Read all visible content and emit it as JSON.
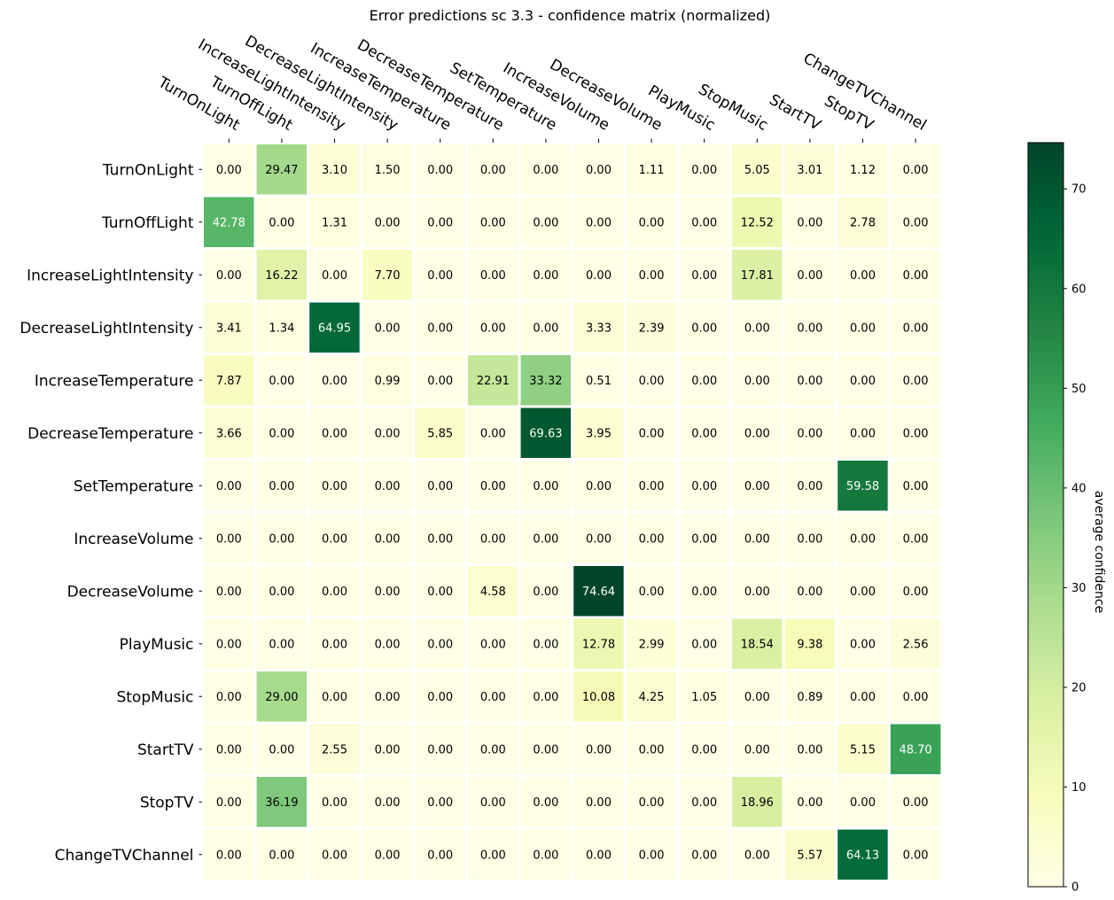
{
  "chart_data": {
    "type": "heatmap",
    "title": "Error predictions sc 3.3 - confidence matrix (normalized)",
    "xlabel": "",
    "ylabel": "",
    "x_categories": [
      "TurnOnLight",
      "TurnOffLight",
      "IncreaseLightIntensity",
      "DecreaseLightIntensity",
      "IncreaseTemperature",
      "DecreaseTemperature",
      "SetTemperature",
      "IncreaseVolume",
      "DecreaseVolume",
      "PlayMusic",
      "StopMusic",
      "StartTV",
      "StopTV",
      "ChangeTVChannel"
    ],
    "y_categories": [
      "TurnOnLight",
      "TurnOffLight",
      "IncreaseLightIntensity",
      "DecreaseLightIntensity",
      "IncreaseTemperature",
      "DecreaseTemperature",
      "SetTemperature",
      "IncreaseVolume",
      "DecreaseVolume",
      "PlayMusic",
      "StopMusic",
      "StartTV",
      "StopTV",
      "ChangeTVChannel"
    ],
    "values": [
      [
        0.0,
        29.47,
        3.1,
        1.5,
        0.0,
        0.0,
        0.0,
        0.0,
        1.11,
        0.0,
        5.05,
        3.01,
        1.12,
        0.0
      ],
      [
        42.78,
        0.0,
        1.31,
        0.0,
        0.0,
        0.0,
        0.0,
        0.0,
        0.0,
        0.0,
        12.52,
        0.0,
        2.78,
        0.0
      ],
      [
        0.0,
        16.22,
        0.0,
        7.7,
        0.0,
        0.0,
        0.0,
        0.0,
        0.0,
        0.0,
        17.81,
        0.0,
        0.0,
        0.0
      ],
      [
        3.41,
        1.34,
        64.95,
        0.0,
        0.0,
        0.0,
        0.0,
        3.33,
        2.39,
        0.0,
        0.0,
        0.0,
        0.0,
        0.0
      ],
      [
        7.87,
        0.0,
        0.0,
        0.99,
        0.0,
        22.91,
        33.32,
        0.51,
        0.0,
        0.0,
        0.0,
        0.0,
        0.0,
        0.0
      ],
      [
        3.66,
        0.0,
        0.0,
        0.0,
        5.85,
        0.0,
        69.63,
        3.95,
        0.0,
        0.0,
        0.0,
        0.0,
        0.0,
        0.0
      ],
      [
        0.0,
        0.0,
        0.0,
        0.0,
        0.0,
        0.0,
        0.0,
        0.0,
        0.0,
        0.0,
        0.0,
        0.0,
        59.58,
        0.0
      ],
      [
        0.0,
        0.0,
        0.0,
        0.0,
        0.0,
        0.0,
        0.0,
        0.0,
        0.0,
        0.0,
        0.0,
        0.0,
        0.0,
        0.0
      ],
      [
        0.0,
        0.0,
        0.0,
        0.0,
        0.0,
        4.58,
        0.0,
        74.64,
        0.0,
        0.0,
        0.0,
        0.0,
        0.0,
        0.0
      ],
      [
        0.0,
        0.0,
        0.0,
        0.0,
        0.0,
        0.0,
        0.0,
        12.78,
        2.99,
        0.0,
        18.54,
        9.38,
        0.0,
        2.56
      ],
      [
        0.0,
        29.0,
        0.0,
        0.0,
        0.0,
        0.0,
        0.0,
        10.08,
        4.25,
        1.05,
        0.0,
        0.89,
        0.0,
        0.0
      ],
      [
        0.0,
        0.0,
        2.55,
        0.0,
        0.0,
        0.0,
        0.0,
        0.0,
        0.0,
        0.0,
        0.0,
        0.0,
        5.15,
        48.7
      ],
      [
        0.0,
        36.19,
        0.0,
        0.0,
        0.0,
        0.0,
        0.0,
        0.0,
        0.0,
        0.0,
        18.96,
        0.0,
        0.0,
        0.0
      ],
      [
        0.0,
        0.0,
        0.0,
        0.0,
        0.0,
        0.0,
        0.0,
        0.0,
        0.0,
        0.0,
        0.0,
        5.57,
        64.13,
        0.0
      ]
    ],
    "value_format": "2 decimals",
    "colormap": "YlGn",
    "vmin": 0,
    "vmax": 74.64,
    "colorbar": {
      "label": "average confidence",
      "ticks": [
        0,
        10,
        20,
        30,
        40,
        50,
        60,
        70
      ],
      "placement": "right"
    },
    "x_tick_position": "top",
    "grid": false,
    "colors": {
      "cmap_stops": [
        "#ffffe5",
        "#f7fcb9",
        "#d9f0a3",
        "#addd8e",
        "#78c679",
        "#41ab5d",
        "#238443",
        "#006837",
        "#004529"
      ],
      "text_dark": "#000000",
      "text_light": "#ffffff",
      "cell_border": "#ffffff"
    }
  }
}
